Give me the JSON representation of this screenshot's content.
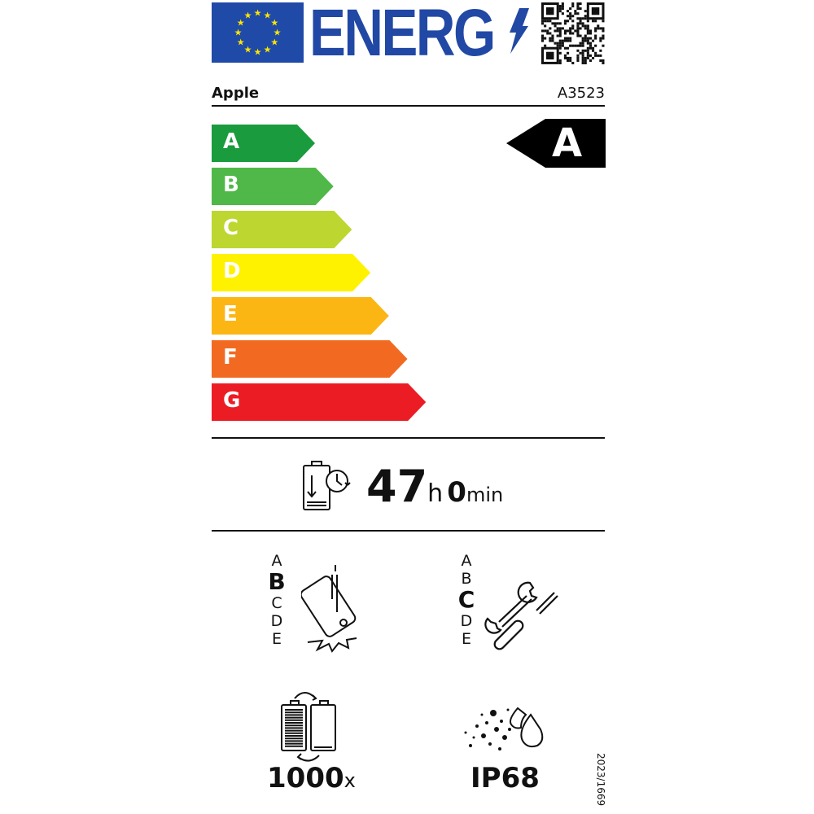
{
  "header": {
    "logo_text": "ENERG",
    "flag_icon": "eu-flag-icon",
    "qr_icon": "qr-code-icon"
  },
  "supplier": "Apple",
  "model": "A3523",
  "scale": {
    "classes": [
      {
        "label": "A",
        "color": "#1a9b3e"
      },
      {
        "label": "B",
        "color": "#50b848"
      },
      {
        "label": "C",
        "color": "#bed630"
      },
      {
        "label": "D",
        "color": "#fff200"
      },
      {
        "label": "E",
        "color": "#fcb614"
      },
      {
        "label": "F",
        "color": "#f26a21"
      },
      {
        "label": "G",
        "color": "#ec1c24"
      }
    ],
    "rating": "A"
  },
  "endurance": {
    "hours": "47",
    "hours_unit": "h",
    "minutes": "0",
    "minutes_unit": "min"
  },
  "drop_resistance": {
    "classes": [
      "A",
      "B",
      "C",
      "D",
      "E"
    ],
    "selected": "B"
  },
  "repairability": {
    "classes": [
      "A",
      "B",
      "C",
      "D",
      "E"
    ],
    "selected": "C"
  },
  "battery_cycles": {
    "value": "1000",
    "unit": "x"
  },
  "ingress": {
    "value": "IP68"
  },
  "regulation": "2023/1669"
}
